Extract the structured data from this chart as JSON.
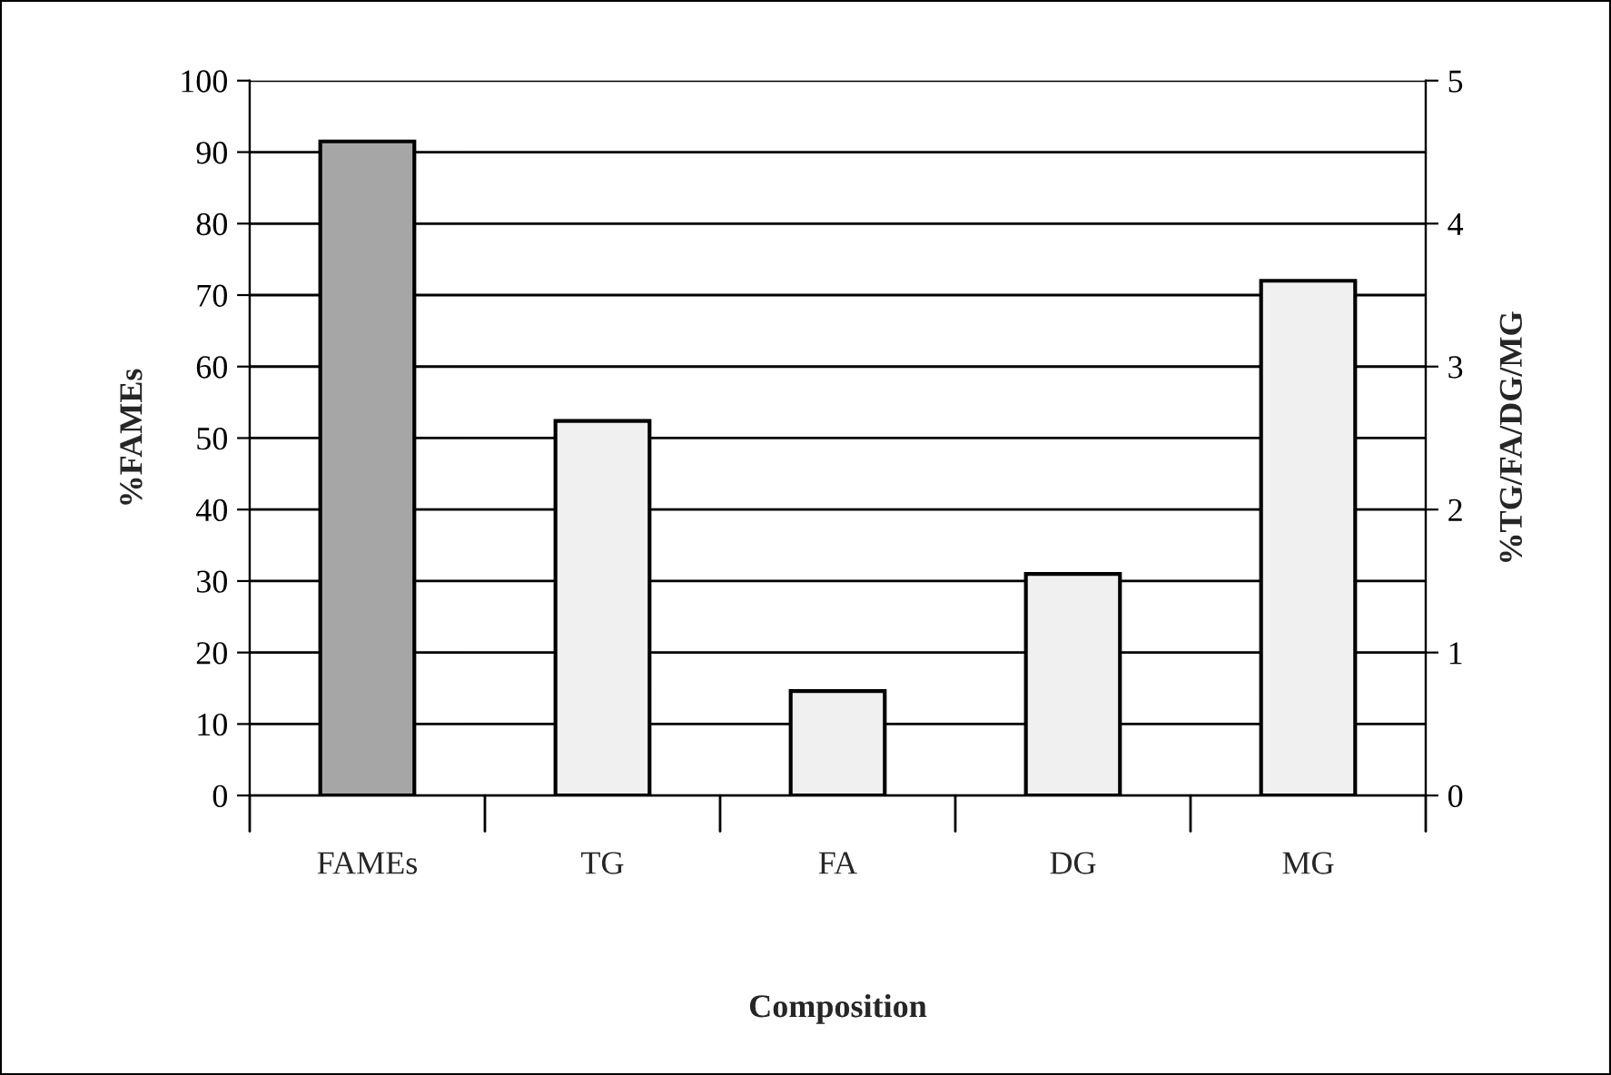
{
  "chart_data": {
    "type": "bar",
    "xlabel": "Composition",
    "ylabel": "%FAMEs",
    "y2label": "%TG/FA/DG/MG",
    "categories": [
      "FAMEs",
      "TG",
      "FA",
      "DG",
      "MG"
    ],
    "series": [
      {
        "color": "#a6a6a6",
        "values": [
          91.5,
          null,
          null,
          null,
          null
        ]
      },
      {
        "color": "#f0f0f0",
        "axis": "y2",
        "values": [
          null,
          2.62,
          0.73,
          1.55,
          3.6
        ]
      }
    ],
    "ylim": [
      0,
      100
    ],
    "yticks": [
      0,
      10,
      20,
      30,
      40,
      50,
      60,
      70,
      80,
      90,
      100
    ],
    "y2lim": [
      0,
      5
    ],
    "y2ticks": [
      0,
      1,
      2,
      3,
      4,
      5
    ],
    "grid": "y",
    "legend": false
  }
}
